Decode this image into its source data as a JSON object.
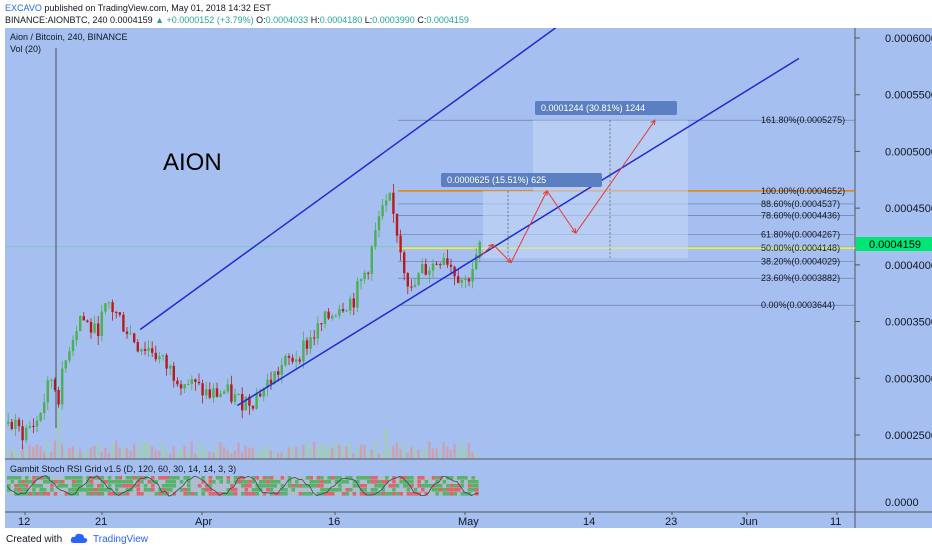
{
  "header": {
    "publisher": "EXCAVO",
    "published_text": "published on TradingView.com, May 01, 2018 14:32 EST",
    "symbol": "BINANCE:AIONBTC, 240",
    "last": "0.0004159",
    "change": "▲ +0.0000152 (+3.79%)",
    "o_label": "O:",
    "o_value": "0.0004033",
    "h_label": "H:",
    "h_value": "0.0004180",
    "l_label": "L:",
    "l_value": "0.0003990",
    "c_label": "C:",
    "c_value": "0.0004159"
  },
  "chart": {
    "title": "Aion / Bitcoin, 240, BINANCE",
    "vol_label": "Vol (20)",
    "watermark": "AION",
    "indicator_label": "Gambit Stoch RSI Grid v1.5 (D, 120, 60, 30, 14, 14, 3, 3)",
    "indicator_zero": "0.0000",
    "price_tag": "0.0004159",
    "measure1": "0.0000625 (15.51%) 625",
    "measure2": "0.0001244 (30.81%) 1244"
  },
  "chart_data": {
    "type": "candlestick",
    "y_ticks": [
      "0.0006000",
      "0.0005500",
      "0.0005000",
      "0.0004500",
      "0.0004000",
      "0.0003500",
      "0.0003000",
      "0.0002500"
    ],
    "x_ticks": [
      "12",
      "21",
      "Apr",
      "16",
      "May",
      "14",
      "23",
      "Jun",
      "11"
    ],
    "ylim": [
      0.00022,
      0.00062
    ],
    "last_price": 0.0004159,
    "fib_levels": [
      {
        "label": "161.80%(0.0005275)",
        "value": 0.0005275
      },
      {
        "label": "100.00%(0.0004652)",
        "value": 0.0004652
      },
      {
        "label": "88.60%(0.0004537)",
        "value": 0.0004537
      },
      {
        "label": "78.60%(0.0004436)",
        "value": 0.0004436
      },
      {
        "label": "61.80%(0.0004267)",
        "value": 0.0004267
      },
      {
        "label": "50.00%(0.0004148)",
        "value": 0.0004148
      },
      {
        "label": "38.20%(0.0004029)",
        "value": 0.0004029
      },
      {
        "label": "23.60%(0.0003882)",
        "value": 0.0003882
      },
      {
        "label": "0.00%(0.0003644)",
        "value": 0.0003644
      }
    ],
    "price_path": [
      [
        0,
        0.00026
      ],
      [
        4,
        0.000252
      ],
      [
        8,
        0.000262
      ],
      [
        12,
        0.0003
      ],
      [
        14,
        0.000285
      ],
      [
        17,
        0.00033
      ],
      [
        20,
        0.000355
      ],
      [
        24,
        0.00034
      ],
      [
        28,
        0.000365
      ],
      [
        32,
        0.000348
      ],
      [
        36,
        0.00033
      ],
      [
        40,
        0.000325
      ],
      [
        44,
        0.00031
      ],
      [
        48,
        0.0003
      ],
      [
        52,
        0.000292
      ],
      [
        56,
        0.000285
      ],
      [
        60,
        0.000288
      ],
      [
        64,
        0.00028
      ],
      [
        68,
        0.000282
      ],
      [
        72,
        0.000295
      ],
      [
        76,
        0.00031
      ],
      [
        80,
        0.00032
      ],
      [
        84,
        0.000335
      ],
      [
        88,
        0.00035
      ],
      [
        92,
        0.000365
      ],
      [
        96,
        0.00037
      ],
      [
        100,
        0.0004
      ],
      [
        103,
        0.00044
      ],
      [
        106,
        0.000455
      ],
      [
        108,
        0.00043
      ],
      [
        110,
        0.0004
      ],
      [
        112,
        0.000375
      ],
      [
        115,
        0.000395
      ],
      [
        118,
        0.0004
      ],
      [
        121,
        0.00041
      ],
      [
        124,
        0.000395
      ],
      [
        127,
        0.000385
      ],
      [
        130,
        0.000404
      ],
      [
        131,
        0.0004159
      ]
    ],
    "channel_lines": [
      {
        "from": [
          37,
          0.000343
        ],
        "to": [
          178,
          0.000668
        ]
      },
      {
        "from": [
          64,
          0.000276
        ],
        "to": [
          220,
          0.000582
        ]
      }
    ],
    "projection_points": [
      [
        131,
        0.000406
      ],
      [
        135,
        0.000418
      ],
      [
        140,
        0.000402
      ],
      [
        150,
        0.0004652
      ],
      [
        158,
        0.000428
      ],
      [
        180,
        0.0005275
      ]
    ]
  },
  "footer": {
    "created": "Created with",
    "brand": "TradingView"
  },
  "colors": {
    "chart_bg": "#a4bff0",
    "channel": "#1b2bd6",
    "bull": "#4caf50",
    "bear": "#b71c1c",
    "projection": "#e53935",
    "fib_100": "#f57c00",
    "fib_50": "#ffeb3b",
    "price_tag": "#00e676"
  }
}
